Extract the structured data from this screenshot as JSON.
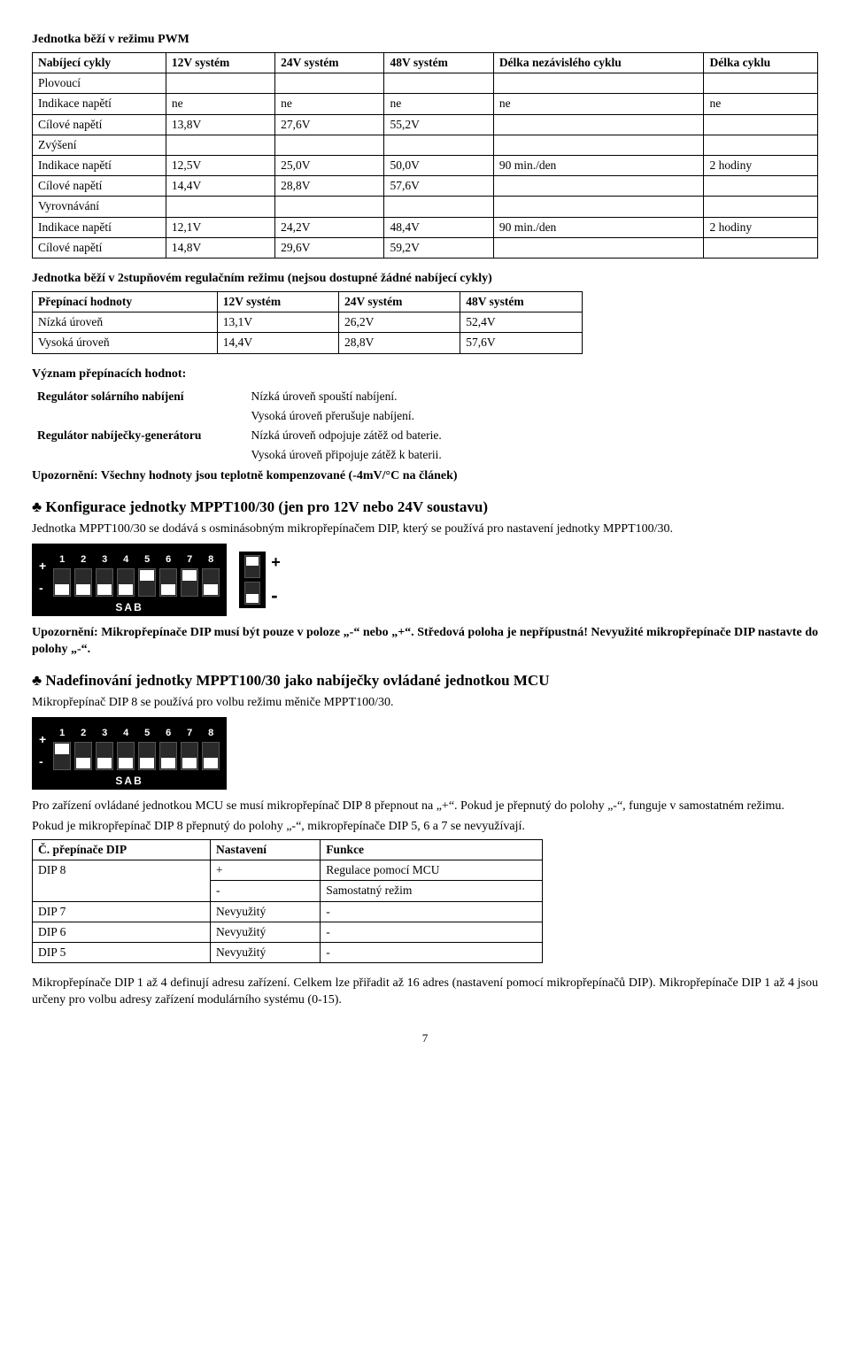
{
  "t1": {
    "title": "Jednotka běží v režimu PWM",
    "headers": [
      "Nabíjecí cykly",
      "12V systém",
      "24V systém",
      "48V systém",
      "Délka nezávislého cyklu",
      "Délka cyklu"
    ],
    "rows": [
      [
        "Plovoucí",
        "",
        "",
        "",
        "",
        ""
      ],
      [
        "Indikace napětí",
        "ne",
        "ne",
        "ne",
        "ne",
        "ne"
      ],
      [
        "Cílové napětí",
        "13,8V",
        "27,6V",
        "55,2V",
        "",
        ""
      ],
      [
        "Zvýšení",
        "",
        "",
        "",
        "",
        ""
      ],
      [
        "Indikace napětí",
        "12,5V",
        "25,0V",
        "50,0V",
        "90 min./den",
        "2 hodiny"
      ],
      [
        "Cílové napětí",
        "14,4V",
        "28,8V",
        "57,6V",
        "",
        ""
      ],
      [
        "Vyrovnávání",
        "",
        "",
        "",
        "",
        ""
      ],
      [
        "Indikace napětí",
        "12,1V",
        "24,2V",
        "48,4V",
        "90 min./den",
        "2 hodiny"
      ],
      [
        "Cílové napětí",
        "14,8V",
        "29,6V",
        "59,2V",
        "",
        ""
      ]
    ]
  },
  "t2": {
    "title": "Jednotka běží v 2stupňovém regulačním režimu (nejsou dostupné žádné nabíjecí cykly)",
    "headers": [
      "Přepínací hodnoty",
      "12V systém",
      "24V systém",
      "48V systém"
    ],
    "rows": [
      [
        "Nízká úroveň",
        "13,1V",
        "26,2V",
        "52,4V"
      ],
      [
        "Vysoká úroveň",
        "14,4V",
        "28,8V",
        "57,6V"
      ]
    ]
  },
  "meanings": {
    "title": "Význam přepínacích hodnot:",
    "rows": [
      [
        "Regulátor solárního nabíjení",
        "Nízká úroveň spouští nabíjení."
      ],
      [
        "",
        "Vysoká úroveň přerušuje nabíjení."
      ],
      [
        "Regulátor nabíječky-generátoru",
        "Nízká úroveň odpojuje zátěž od baterie."
      ],
      [
        "",
        "Vysoká úroveň připojuje zátěž k baterii."
      ]
    ],
    "note": "Upozornění: Všechny hodnoty jsou teplotně kompenzované (-4mV/°C na článek)"
  },
  "conf": {
    "title": "♣ Konfigurace jednotky MPPT100/30 (jen pro 12V nebo 24V soustavu)",
    "para": "Jednotka MPPT100/30 se dodává s osminásobným mikropřepínačem DIP, který se používá pro nastavení jednotky MPPT100/30.",
    "warn": "Upozornění: Mikropřepínače DIP musí být pouze v poloze „-“ nebo „+“. Středová poloha je nepřípustná! Nevyužité mikropřepínače DIP nastavte do polohy „-“."
  },
  "mcu": {
    "title": "♣ Nadefinování jednotky MPPT100/30 jako nabíječky ovládané jednotkou MCU",
    "para1": "Mikropřepínač DIP 8 se používá pro volbu režimu měniče MPPT100/30.",
    "para2": "Pro zařízení ovládané jednotkou MCU se musí mikropřepínač DIP 8 přepnout na „+“. Pokud je přepnutý do polohy „-“, funguje v samostatném režimu.",
    "para3": "Pokud je mikropřepínač DIP 8 přepnutý do polohy „-“, mikropřepínače DIP 5, 6 a 7 se nevyužívají."
  },
  "t3": {
    "headers": [
      "Č. přepínače DIP",
      "Nastavení",
      "Funkce"
    ],
    "rows": [
      [
        "DIP 8",
        "+",
        "Regulace pomocí MCU"
      ],
      [
        "",
        "-",
        "Samostatný režim"
      ],
      [
        "DIP 7",
        "Nevyužitý",
        "-"
      ],
      [
        "DIP 6",
        "Nevyužitý",
        "-"
      ],
      [
        "DIP 5",
        "Nevyužitý",
        "-"
      ]
    ],
    "footer": "Mikropřepínače DIP 1 až 4 definují adresu zařízení. Celkem lze přiřadit až 16 adres (nastavení pomocí mikropřepínačů DIP).  Mikropřepínače DIP 1 až 4 jsou určeny pro volbu adresy zařízení modulárního systému (0-15)."
  },
  "dip_nums": [
    "1",
    "2",
    "3",
    "4",
    "5",
    "6",
    "7",
    "8"
  ],
  "dip1_states": [
    "down",
    "down",
    "down",
    "down",
    "up",
    "down",
    "up",
    "down"
  ],
  "dip2_states": [
    "up",
    "down",
    "down",
    "down",
    "down",
    "down",
    "down",
    "down"
  ],
  "sab": "SAB",
  "plus": "+",
  "minus": "-",
  "page": "7"
}
